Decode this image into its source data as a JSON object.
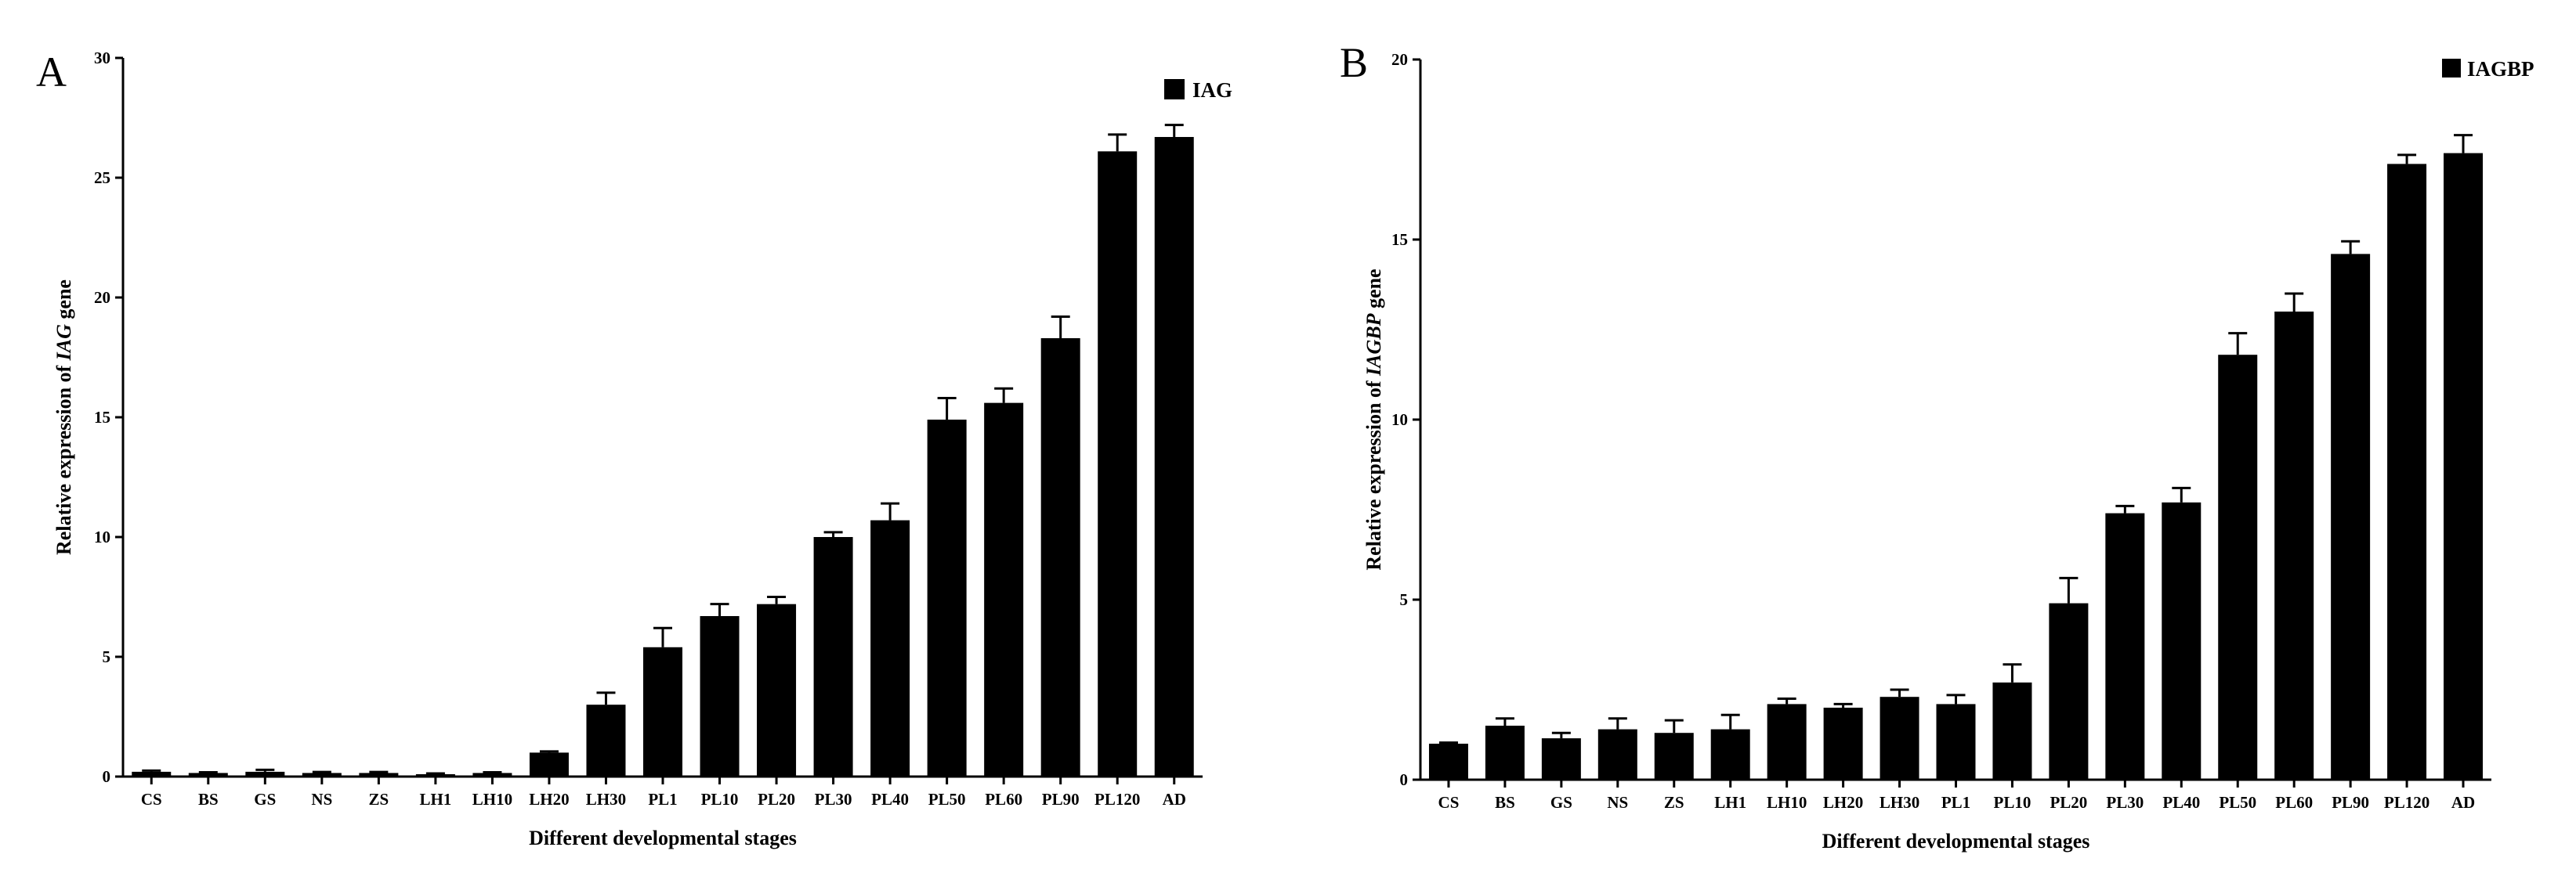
{
  "chart_data": [
    {
      "type": "bar",
      "panel_label": "A",
      "ylabel_parts": [
        "Relative expression of ",
        "IAG",
        " gene"
      ],
      "xlabel": "Different developmental stages",
      "ylim": [
        0,
        30
      ],
      "yticks": [
        0,
        5,
        10,
        15,
        20,
        25,
        30
      ],
      "categories": [
        "CS",
        "BS",
        "GS",
        "NS",
        "ZS",
        "LH1",
        "LH10",
        "LH20",
        "LH30",
        "PL1",
        "PL10",
        "PL20",
        "PL30",
        "PL40",
        "PL50",
        "PL60",
        "PL90",
        "PL120",
        "AD"
      ],
      "series": [
        {
          "name": "IAG",
          "color": "#000000",
          "values": [
            0.2,
            0.15,
            0.2,
            0.15,
            0.15,
            0.1,
            0.15,
            1.0,
            3.0,
            5.4,
            6.7,
            7.2,
            10.0,
            10.7,
            14.9,
            15.6,
            18.3,
            26.1,
            26.7
          ],
          "errors": [
            0.05,
            0.03,
            0.08,
            0.04,
            0.04,
            0.03,
            0.03,
            0.05,
            0.5,
            0.8,
            0.5,
            0.3,
            0.2,
            0.7,
            0.9,
            0.6,
            0.9,
            0.7,
            0.5
          ]
        }
      ],
      "legend_position": "top-right",
      "grid": false
    },
    {
      "type": "bar",
      "panel_label": "B",
      "ylabel_parts": [
        "Relative expression of ",
        "IAGBP",
        " gene"
      ],
      "xlabel": "Different developmental stages",
      "ylim": [
        0,
        20
      ],
      "yticks": [
        0,
        5,
        10,
        15,
        20
      ],
      "categories": [
        "CS",
        "BS",
        "GS",
        "NS",
        "ZS",
        "LH1",
        "LH10",
        "LH20",
        "LH30",
        "PL1",
        "PL10",
        "PL20",
        "PL30",
        "PL40",
        "PL50",
        "PL60",
        "PL90",
        "PL120",
        "AD"
      ],
      "series": [
        {
          "name": "IAGBP",
          "color": "#000000",
          "values": [
            1.0,
            1.5,
            1.15,
            1.4,
            1.3,
            1.4,
            2.1,
            2.0,
            2.3,
            2.1,
            2.7,
            4.9,
            7.4,
            7.7,
            11.8,
            13.0,
            14.6,
            17.1,
            17.4
          ],
          "errors": [
            0.03,
            0.2,
            0.15,
            0.3,
            0.35,
            0.4,
            0.15,
            0.1,
            0.2,
            0.25,
            0.5,
            0.7,
            0.2,
            0.4,
            0.6,
            0.5,
            0.35,
            0.25,
            0.5
          ]
        }
      ],
      "legend_position": "top-right",
      "grid": false
    }
  ]
}
